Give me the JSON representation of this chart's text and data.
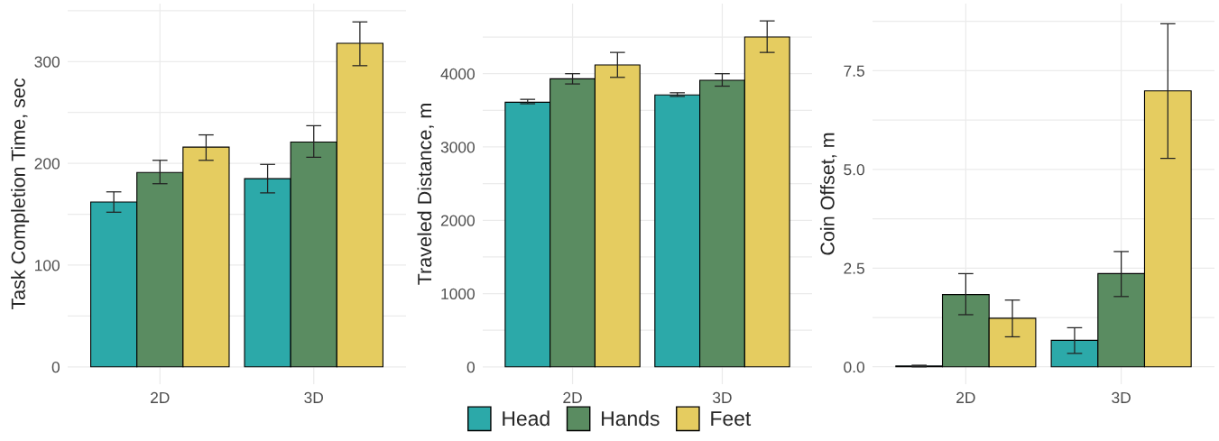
{
  "chart_data": [
    {
      "type": "bar",
      "ylabel": "Task Completion Time, sec",
      "categories": [
        "2D",
        "3D"
      ],
      "series": [
        {
          "color": "#2ca9a9",
          "values": [
            162,
            185
          ],
          "errors": [
            [
              152,
              172
            ],
            [
              171,
              199
            ]
          ]
        },
        {
          "color": "#5a8c61",
          "values": [
            191,
            221
          ],
          "errors": [
            [
              180,
              203
            ],
            [
              206,
              237
            ]
          ]
        },
        {
          "color": "#e5cc60",
          "values": [
            216,
            318
          ],
          "errors": [
            [
              203,
              228
            ],
            [
              296,
              339
            ]
          ]
        }
      ],
      "ylim": [
        -17,
        357
      ],
      "yticks": [
        0,
        {
          "value": 50,
          "label": null
        },
        100,
        {
          "value": 150,
          "label": null
        },
        200,
        {
          "value": 250,
          "label": null
        },
        300,
        {
          "value": 350,
          "label": null
        }
      ],
      "grid": true
    },
    {
      "type": "bar",
      "ylabel": "Traveled Distance, m",
      "categories": [
        "2D",
        "3D"
      ],
      "series": [
        {
          "name": "Head",
          "color": "#2ca9a9",
          "values": [
            3610,
            3710
          ],
          "errors": [
            [
              3590,
              3650
            ],
            [
              3690,
              3740
            ]
          ]
        },
        {
          "name": "Hands",
          "color": "#5a8c61",
          "values": [
            3930,
            3910
          ],
          "errors": [
            [
              3860,
              4000
            ],
            [
              3830,
              4000
            ]
          ]
        },
        {
          "name": "Feet",
          "color": "#e5cc60",
          "values": [
            4120,
            4500
          ],
          "errors": [
            [
              3950,
              4290
            ],
            [
              4290,
              4720
            ]
          ]
        }
      ],
      "ylim": [
        -236,
        4956
      ],
      "yticks": [
        0,
        {
          "value": 500,
          "label": null
        },
        1000,
        {
          "value": 1500,
          "label": null
        },
        2000,
        {
          "value": 2500,
          "label": null
        },
        3000,
        {
          "value": 3500,
          "label": null
        },
        4000,
        {
          "value": 4500,
          "label": null
        }
      ],
      "grid": true,
      "legend": "bottom"
    },
    {
      "type": "bar",
      "ylabel": "Coin Offset, m",
      "categories": [
        "2D",
        "3D"
      ],
      "series": [
        {
          "color": "#2ca9a9",
          "values": [
            0.02,
            0.67
          ],
          "errors": [
            [
              0.0,
              0.04
            ],
            [
              0.34,
              0.99
            ]
          ]
        },
        {
          "color": "#5a8c61",
          "values": [
            1.83,
            2.36
          ],
          "errors": [
            [
              1.32,
              2.36
            ],
            [
              1.78,
              2.92
            ]
          ]
        },
        {
          "color": "#e5cc60",
          "values": [
            1.23,
            6.99
          ],
          "errors": [
            [
              0.76,
              1.69
            ],
            [
              5.28,
              8.69
            ]
          ]
        }
      ],
      "ylim": [
        -0.44,
        9.2
      ],
      "yticks": [
        {
          "value": 0,
          "label": "0.0"
        },
        {
          "value": 1.25,
          "label": null
        },
        2.5,
        {
          "value": 3.75,
          "label": null
        },
        {
          "value": 5,
          "label": "5.0"
        },
        {
          "value": 6.25,
          "label": null
        },
        7.5,
        {
          "value": 8.75,
          "label": null
        }
      ],
      "grid": true
    }
  ]
}
